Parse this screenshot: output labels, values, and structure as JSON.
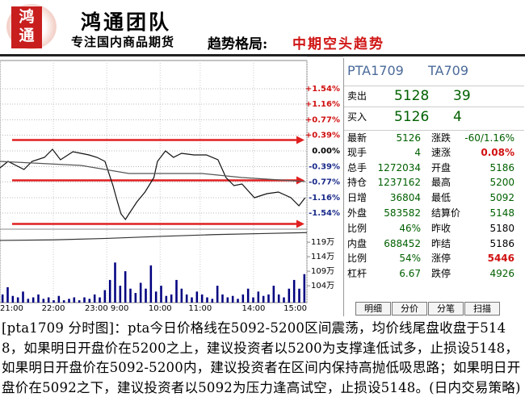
{
  "header": {
    "logo": [
      "鸿",
      "通"
    ],
    "brand": "鸿通团队",
    "tagline": "专注国内商品期货",
    "trend_label": "趋势格局:",
    "trend": "中期空头趋势"
  },
  "chart_data": [
    {
      "type": "line",
      "xlim": [
        0,
        345
      ],
      "xticks": [
        {
          "value": 0,
          "label": "21:00"
        },
        {
          "value": 60,
          "label": "22:00"
        },
        {
          "value": 120,
          "label": "23:00 9:00"
        },
        {
          "value": 180,
          "label": "10:00"
        },
        {
          "value": 225,
          "label": "11:00"
        },
        {
          "value": 285,
          "label": "14:00"
        },
        {
          "value": 345,
          "label": "15:00"
        }
      ],
      "ylim": [
        -1.92,
        1.94
      ],
      "yticks": [
        {
          "value": 1.54,
          "label": "+1.54%"
        },
        {
          "value": 1.16,
          "label": "+1.16%"
        },
        {
          "value": 0.77,
          "label": "+0.77%"
        },
        {
          "value": 0.39,
          "label": "+0.39%"
        },
        {
          "value": 0,
          "label": "0.00%"
        },
        {
          "value": -0.39,
          "label": "-0.39%"
        },
        {
          "value": -0.77,
          "label": "-0.77%"
        },
        {
          "value": -1.16,
          "label": "-1.16%"
        },
        {
          "value": -1.54,
          "label": "-1.54%"
        }
      ],
      "grid": true,
      "reference_lines": [
        0.27,
        -0.73,
        -1.81
      ],
      "reference_color": "#e02020",
      "series": [
        {
          "color": "#111111",
          "x": [
            0,
            9,
            18,
            27,
            36,
            50,
            59,
            68,
            82,
            91,
            100,
            109,
            118,
            127,
            132,
            136,
            141,
            145,
            154,
            163,
            173,
            177,
            186,
            195,
            204,
            218,
            232,
            245,
            254,
            263,
            272,
            286,
            300,
            313,
            327,
            336,
            343
          ],
          "values": [
            -0.42,
            -0.26,
            -0.36,
            -0.46,
            -0.26,
            -0.16,
            0.04,
            -0.22,
            -0.02,
            -0.06,
            -0.1,
            -0.16,
            -0.26,
            -0.86,
            -1.26,
            -1.56,
            -1.7,
            -1.56,
            -1.26,
            -1.02,
            -0.66,
            -0.26,
            0,
            -0.16,
            -0.06,
            -0.1,
            -0.1,
            -0.22,
            -0.66,
            -0.86,
            -0.82,
            -1.16,
            -1.06,
            -1.02,
            -1.16,
            -1.36,
            -1.16
          ]
        },
        {
          "color": "#555555",
          "x": [
            0,
            91,
            145,
            227,
            272,
            343
          ],
          "values": [
            -0.26,
            -0.36,
            -0.56,
            -0.56,
            -0.66,
            -0.76
          ]
        }
      ]
    },
    {
      "type": "bar",
      "ylim": [
        98.2,
        123.2
      ],
      "yticks": [
        {
          "value": 119,
          "label": "119万"
        },
        {
          "value": 114,
          "label": "114万"
        },
        {
          "value": 109,
          "label": "109万"
        },
        {
          "value": 104,
          "label": "104万"
        }
      ],
      "color": "#000080",
      "values": [
        101,
        103.5,
        100.5,
        100,
        102,
        99.5,
        100,
        101,
        99.5,
        100,
        99,
        100.5,
        99,
        99.5,
        100,
        99,
        100,
        99.5,
        101,
        100,
        102.5,
        106,
        112,
        104,
        109,
        103,
        101.5,
        105,
        103,
        111,
        102,
        104,
        100.5,
        101,
        106,
        103,
        101,
        100,
        102,
        101,
        100,
        99.5,
        104,
        101,
        100,
        100.5,
        99.5,
        101,
        103,
        100,
        102,
        100.5,
        101,
        104,
        101,
        100,
        103,
        106,
        103,
        108
      ],
      "line": {
        "color": "#333333",
        "x": [
          0,
          60,
          120,
          180,
          240,
          300,
          345
        ],
        "values": [
          119.6,
          119.8,
          120.3,
          121,
          121.6,
          122,
          122.3
        ]
      }
    }
  ],
  "quote": {
    "title": [
      "PTA1709",
      "TA709"
    ],
    "sell": [
      "卖出",
      "5128",
      "39"
    ],
    "buy": [
      "买入",
      "5126",
      "4"
    ],
    "rows": [
      [
        "最新",
        "5126",
        "涨跌",
        "-60/1.16%"
      ],
      [
        "现手",
        "4",
        "速涨",
        "0.08%"
      ],
      [
        "总手",
        "1272034",
        "开盘",
        "5186"
      ],
      [
        "持仓",
        "1237162",
        "最高",
        "5200"
      ],
      [
        "日增",
        "36804",
        "最低",
        "5092"
      ],
      [
        "外盘",
        "583582",
        "结算价",
        "5148"
      ],
      [
        "比例",
        "46%",
        "昨收",
        "5180"
      ],
      [
        "内盘",
        "688452",
        "昨结",
        "5186"
      ],
      [
        "比例",
        "54%",
        "涨停",
        "5446"
      ],
      [
        "杠杆",
        "6.67",
        "跌停",
        "4926"
      ]
    ],
    "tabs": [
      "明细",
      "分价",
      "分笔",
      "扫描"
    ]
  },
  "caption": "[pta1709 分时图]：pta今日价格线在5092-5200区间震荡，均价线尾盘收盘于5148，如果明日开盘价在5200之上，建议投资者以5200为支撑逢低试多，止损设5148，如果明日开盘价在5092-5200内，建议投资者在区间内保持高抛低吸思路；如果明日开盘价在5092之下，建议投资者以5092为压力逢高试空，止损设5148。(日内交易策略)"
}
